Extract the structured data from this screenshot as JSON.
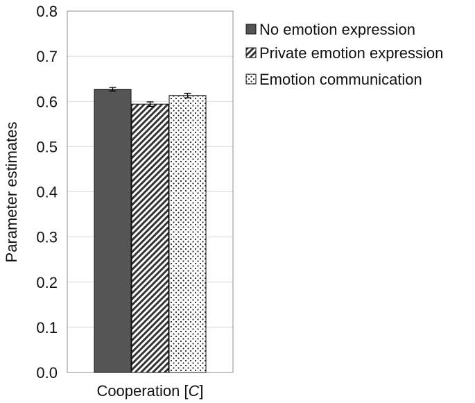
{
  "chart_data": {
    "type": "bar",
    "categories": [
      "Cooperation [C]"
    ],
    "category_parts": [
      {
        "main": "Cooperation [",
        "italic": "C",
        "end": "]"
      }
    ],
    "series": [
      {
        "name": "No emotion expression",
        "values": [
          0.627
        ],
        "error": [
          0.004
        ],
        "color": "#555555",
        "pattern": "solid"
      },
      {
        "name": "Private emotion expression",
        "values": [
          0.594
        ],
        "error": [
          0.005
        ],
        "color": "#333333",
        "pattern": "diagonal"
      },
      {
        "name": "Emotion communication",
        "values": [
          0.613
        ],
        "error": [
          0.005
        ],
        "color": "#333333",
        "pattern": "dots"
      }
    ],
    "ylim": [
      0,
      0.8
    ],
    "yticks": [
      "0.0",
      "0.1",
      "0.2",
      "0.3",
      "0.4",
      "0.5",
      "0.6",
      "0.7",
      "0.8"
    ],
    "ylabel": "Parameter estimates",
    "xlabel": "",
    "title": "",
    "grid": true,
    "legend": "top-right"
  }
}
